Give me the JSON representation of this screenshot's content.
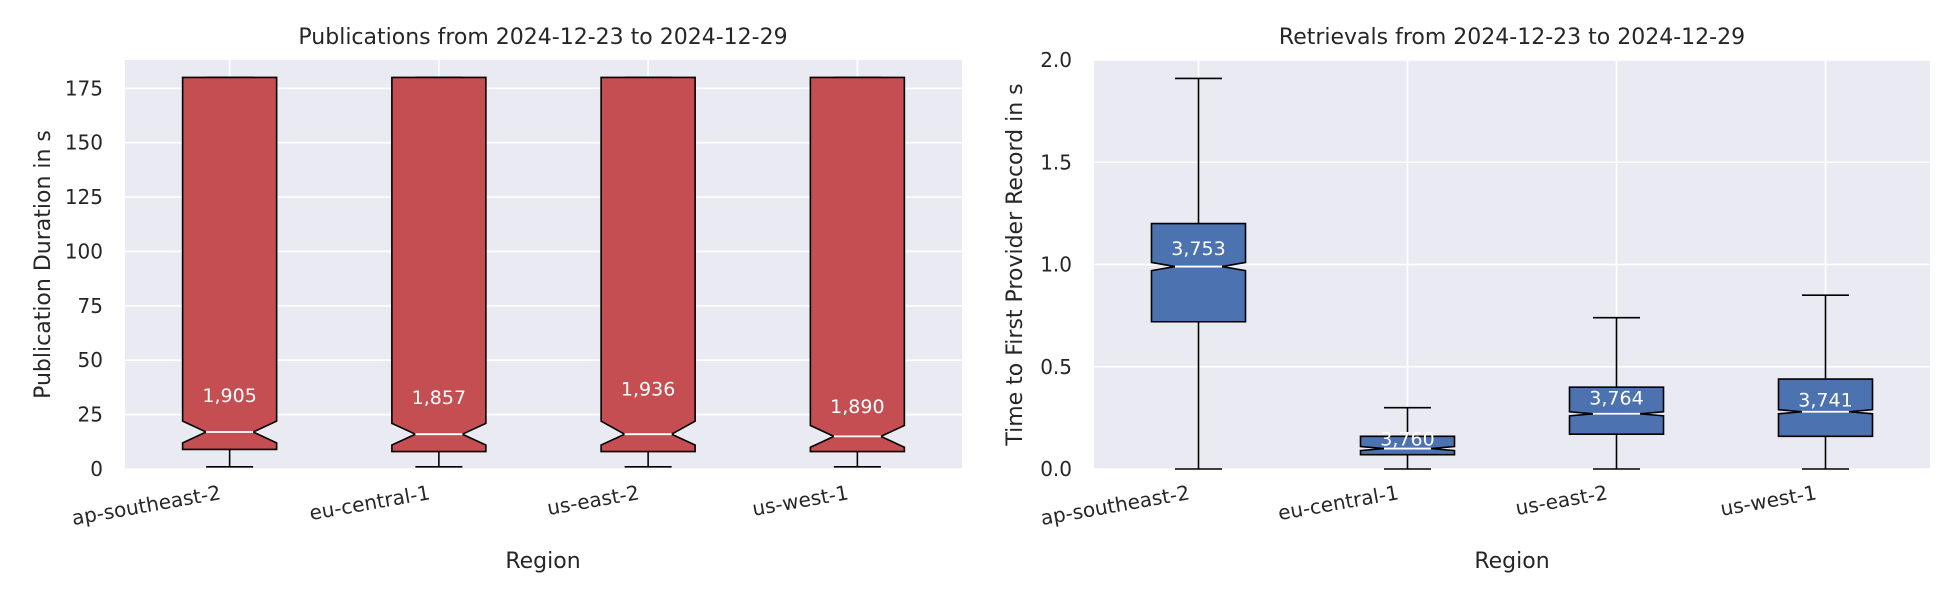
{
  "chart_data": [
    {
      "type": "boxplot",
      "title": "Publications from 2024-12-23 to 2024-12-29",
      "xlabel": "Region",
      "ylabel": "Publication Duration in s",
      "ylim": [
        0,
        188
      ],
      "yticks": [
        0,
        25,
        50,
        75,
        100,
        125,
        150,
        175
      ],
      "grid": true,
      "notched": true,
      "box_color": "#c44e52",
      "median_color": "#ffffff",
      "categories": [
        "ap-southeast-2",
        "eu-central-1",
        "us-east-2",
        "us-west-1"
      ],
      "boxes": [
        {
          "whisker_low": 1,
          "q1": 9,
          "median": 17,
          "q3": 180,
          "whisker_high": 180,
          "notch_low": 12,
          "notch_high": 22,
          "count_label": "1,905",
          "count_label_y": 34
        },
        {
          "whisker_low": 1,
          "q1": 8,
          "median": 16,
          "q3": 180,
          "whisker_high": 180,
          "notch_low": 11,
          "notch_high": 21,
          "count_label": "1,857",
          "count_label_y": 33
        },
        {
          "whisker_low": 1,
          "q1": 8,
          "median": 16,
          "q3": 180,
          "whisker_high": 180,
          "notch_low": 11,
          "notch_high": 22,
          "count_label": "1,936",
          "count_label_y": 37
        },
        {
          "whisker_low": 1,
          "q1": 8,
          "median": 15,
          "q3": 180,
          "whisker_high": 180,
          "notch_low": 10,
          "notch_high": 20,
          "count_label": "1,890",
          "count_label_y": 29
        }
      ]
    },
    {
      "type": "boxplot",
      "title": "Retrievals from 2024-12-23 to 2024-12-29",
      "xlabel": "Region",
      "ylabel": "Time to First Provider Record in s",
      "ylim": [
        0,
        2.0
      ],
      "yticks": [
        "0.0",
        "0.5",
        "1.0",
        "1.5",
        "2.0"
      ],
      "grid": true,
      "notched": true,
      "box_color": "#4c72b0",
      "median_color": "#ffffff",
      "categories": [
        "ap-southeast-2",
        "eu-central-1",
        "us-east-2",
        "us-west-1"
      ],
      "boxes": [
        {
          "whisker_low": 0.0,
          "q1": 0.72,
          "median": 0.99,
          "q3": 1.2,
          "whisker_high": 1.91,
          "notch_low": 0.97,
          "notch_high": 1.01,
          "count_label": "3,753",
          "count_label_y": 1.08
        },
        {
          "whisker_low": 0.0,
          "q1": 0.07,
          "median": 0.1,
          "q3": 0.16,
          "whisker_high": 0.3,
          "notch_low": 0.09,
          "notch_high": 0.11,
          "count_label": "3,760",
          "count_label_y": 0.15
        },
        {
          "whisker_low": 0.0,
          "q1": 0.17,
          "median": 0.27,
          "q3": 0.4,
          "whisker_high": 0.74,
          "notch_low": 0.26,
          "notch_high": 0.28,
          "count_label": "3,764",
          "count_label_y": 0.35
        },
        {
          "whisker_low": 0.0,
          "q1": 0.16,
          "median": 0.28,
          "q3": 0.44,
          "whisker_high": 0.85,
          "notch_low": 0.27,
          "notch_high": 0.29,
          "count_label": "3,741",
          "count_label_y": 0.34
        }
      ]
    }
  ]
}
